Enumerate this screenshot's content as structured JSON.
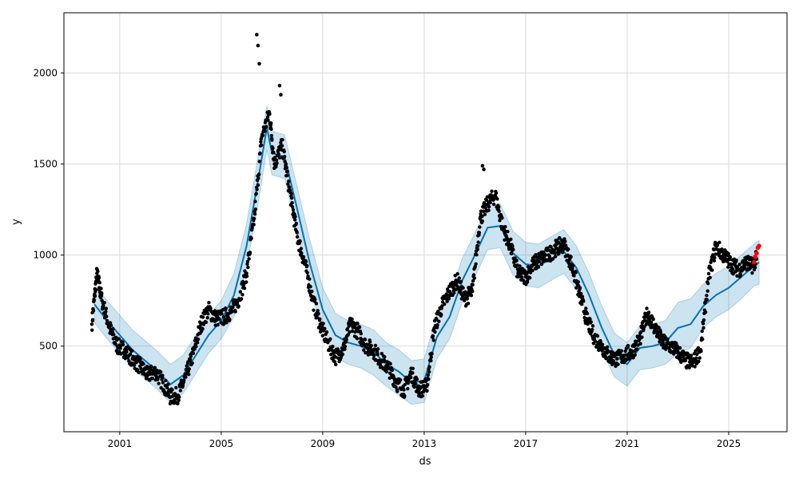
{
  "chart_data": {
    "type": "line",
    "title": "",
    "xlabel": "ds",
    "ylabel": "y",
    "xlim": [
      1998.8,
      2027.3
    ],
    "ylim": [
      30,
      2330
    ],
    "grid": true,
    "x_ticks": [
      2001,
      2005,
      2009,
      2013,
      2017,
      2021,
      2025
    ],
    "x_tick_labels": [
      "2001",
      "2005",
      "2009",
      "2013",
      "2017",
      "2021",
      "2025"
    ],
    "y_ticks": [
      500,
      1000,
      1500,
      2000
    ],
    "y_tick_labels": [
      "500",
      "1000",
      "1500",
      "2000"
    ],
    "forecast": {
      "x": [
        2000.0,
        2000.5,
        2001.0,
        2001.5,
        2002.0,
        2002.5,
        2003.0,
        2003.5,
        2004.0,
        2004.5,
        2005.0,
        2005.5,
        2006.0,
        2006.5,
        2006.8,
        2007.0,
        2007.5,
        2008.0,
        2008.5,
        2009.0,
        2009.5,
        2010.0,
        2010.5,
        2011.0,
        2011.5,
        2012.0,
        2012.5,
        2013.0,
        2013.5,
        2014.0,
        2014.5,
        2015.0,
        2015.5,
        2016.0,
        2016.5,
        2017.0,
        2017.5,
        2018.0,
        2018.5,
        2019.0,
        2019.5,
        2020.0,
        2020.5,
        2021.0,
        2021.5,
        2022.0,
        2022.5,
        2023.0,
        2023.5,
        2024.0,
        2024.5,
        2025.0,
        2025.5,
        2026.0,
        2026.2
      ],
      "yhat": [
        730,
        640,
        560,
        480,
        420,
        360,
        290,
        340,
        450,
        560,
        640,
        780,
        1050,
        1450,
        1700,
        1560,
        1540,
        1250,
        950,
        700,
        560,
        520,
        500,
        470,
        400,
        360,
        300,
        310,
        550,
        660,
        860,
        1000,
        1150,
        1160,
        1010,
        950,
        940,
        980,
        1020,
        930,
        780,
        600,
        450,
        400,
        490,
        500,
        520,
        600,
        620,
        720,
        780,
        820,
        880,
        940,
        960
      ],
      "lower": [
        630,
        540,
        460,
        380,
        320,
        260,
        190,
        240,
        350,
        460,
        540,
        660,
        930,
        1320,
        1580,
        1440,
        1420,
        1130,
        820,
        580,
        440,
        400,
        380,
        340,
        280,
        230,
        180,
        190,
        430,
        540,
        740,
        880,
        1030,
        1040,
        890,
        830,
        820,
        860,
        900,
        810,
        660,
        480,
        330,
        280,
        370,
        380,
        400,
        460,
        490,
        600,
        660,
        700,
        760,
        830,
        840
      ],
      "upper": [
        840,
        750,
        670,
        590,
        530,
        470,
        400,
        450,
        560,
        670,
        750,
        900,
        1170,
        1580,
        1820,
        1680,
        1660,
        1370,
        1080,
        820,
        680,
        640,
        620,
        590,
        520,
        480,
        420,
        430,
        670,
        780,
        980,
        1120,
        1270,
        1280,
        1130,
        1070,
        1060,
        1100,
        1140,
        1050,
        900,
        720,
        570,
        520,
        610,
        620,
        640,
        740,
        760,
        840,
        900,
        940,
        1000,
        1060,
        1080
      ]
    },
    "observed": {
      "x": [
        1999.9,
        2000.1,
        2000.3,
        2000.6,
        2000.9,
        2001.2,
        2001.5,
        2001.8,
        2002.1,
        2002.4,
        2002.7,
        2003.0,
        2003.3,
        2003.6,
        2003.9,
        2004.2,
        2004.5,
        2004.8,
        2005.1,
        2005.4,
        2005.7,
        2006.0,
        2006.3,
        2006.6,
        2006.9,
        2007.1,
        2007.4,
        2007.7,
        2008.0,
        2008.3,
        2008.6,
        2008.9,
        2009.2,
        2009.5,
        2009.8,
        2010.1,
        2010.4,
        2010.7,
        2011.0,
        2011.3,
        2011.6,
        2011.9,
        2012.2,
        2012.5,
        2012.8,
        2013.1,
        2013.4,
        2013.7,
        2014.0,
        2014.3,
        2014.6,
        2014.9,
        2015.2,
        2015.5,
        2015.8,
        2016.1,
        2016.4,
        2016.7,
        2017.0,
        2017.3,
        2017.6,
        2017.9,
        2018.2,
        2018.5,
        2018.8,
        2019.1,
        2019.4,
        2019.7,
        2020.0,
        2020.3,
        2020.6,
        2020.9,
        2021.2,
        2021.5,
        2021.8,
        2022.1,
        2022.4,
        2022.7,
        2023.0,
        2023.3,
        2023.6,
        2023.9,
        2024.2,
        2024.5,
        2024.8,
        2025.1,
        2025.4,
        2025.7,
        2025.9,
        2026.1
      ],
      "y": [
        620,
        900,
        750,
        600,
        500,
        480,
        430,
        390,
        340,
        360,
        300,
        220,
        230,
        330,
        460,
        620,
        700,
        650,
        660,
        690,
        760,
        900,
        1200,
        1650,
        1780,
        1500,
        1600,
        1350,
        1100,
        950,
        760,
        620,
        520,
        440,
        480,
        620,
        580,
        500,
        480,
        420,
        380,
        300,
        260,
        350,
        260,
        280,
        600,
        720,
        800,
        860,
        760,
        800,
        1200,
        1280,
        1330,
        1150,
        1050,
        900,
        880,
        950,
        980,
        1000,
        1040,
        1060,
        950,
        800,
        650,
        550,
        500,
        440,
        430,
        450,
        470,
        540,
        680,
        600,
        520,
        500,
        470,
        420,
        410,
        480,
        870,
        1050,
        1000,
        950,
        920,
        960,
        940,
        980
      ]
    },
    "spikes": {
      "x": [
        2006.4,
        2006.45,
        2006.5,
        2007.3,
        2007.35,
        2015.3,
        2015.35
      ],
      "y": [
        2210,
        2150,
        2050,
        1930,
        1880,
        1490,
        1470
      ]
    },
    "highlight": {
      "x": [
        2026.0,
        2026.05,
        2026.1,
        2026.15,
        2026.2
      ],
      "y": [
        960,
        990,
        1010,
        1040,
        1050
      ]
    },
    "colors": {
      "forecast_line": "#0072b2",
      "interval_fill": "#0072b2",
      "observed_points": "#000000",
      "highlight_points": "#ff0000",
      "grid": "#d9d9d9"
    }
  }
}
